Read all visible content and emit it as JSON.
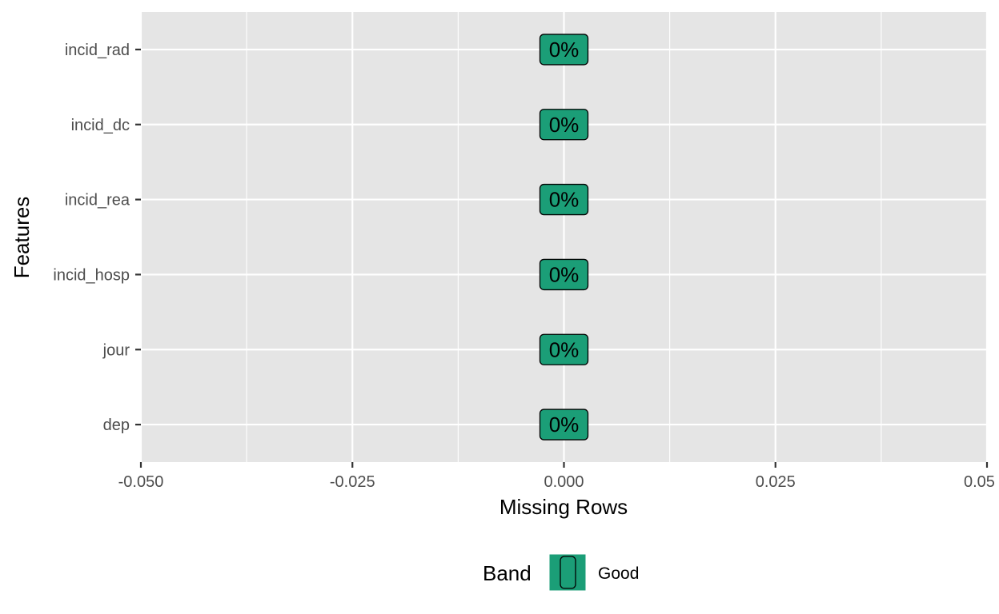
{
  "chart_data": {
    "type": "bar",
    "orientation": "horizontal",
    "categories": [
      "incid_rad",
      "incid_dc",
      "incid_rea",
      "incid_hosp",
      "jour",
      "dep"
    ],
    "values": [
      0,
      0,
      0,
      0,
      0,
      0
    ],
    "data_labels": [
      "0%",
      "0%",
      "0%",
      "0%",
      "0%",
      "0%"
    ],
    "band": [
      "Good",
      "Good",
      "Good",
      "Good",
      "Good",
      "Good"
    ],
    "xlabel": "Missing Rows",
    "ylabel": "Features",
    "xlim": [
      -0.05,
      0.05
    ],
    "x_ticks": [
      -0.05,
      -0.025,
      0.0,
      0.025,
      0.05
    ],
    "x_tick_labels": [
      "-0.050",
      "-0.025",
      "0.000",
      "0.025",
      "0.05"
    ],
    "grid": true,
    "legend": {
      "title": "Band",
      "position": "bottom",
      "entries": [
        {
          "label": "Good",
          "color": "#1b9e77"
        }
      ]
    },
    "colors": {
      "panel_background": "#e5e5e5",
      "grid": "#ffffff",
      "good": "#1b9e77"
    }
  }
}
